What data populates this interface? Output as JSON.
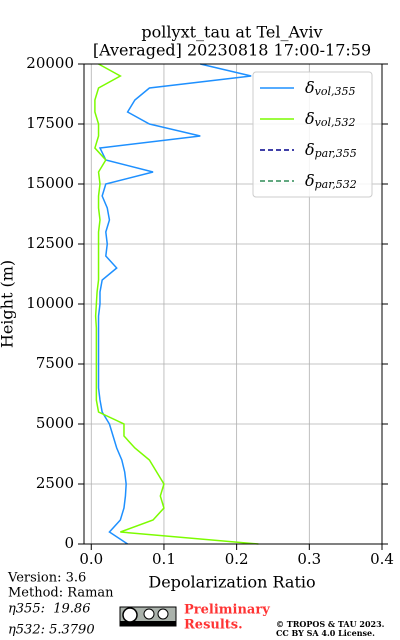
{
  "chart_data": {
    "type": "line",
    "title": "pollyxt_tau at Tel_Aviv",
    "subtitle": "[Averaged] 20230818 17:00-17:59",
    "x_label": "Depolarization Ratio",
    "y_label": "Height (m)",
    "y": [
      0,
      500,
      1000,
      1500,
      2000,
      2500,
      3000,
      3500,
      4000,
      4500,
      5000,
      5500,
      6000,
      6500,
      7000,
      7500,
      8000,
      8500,
      9000,
      9500,
      10000,
      10500,
      11000,
      11500,
      12000,
      12500,
      13000,
      13500,
      14000,
      14500,
      15000,
      15500,
      16000,
      16500,
      17000,
      17500,
      18000,
      18500,
      19000,
      19500,
      20000
    ],
    "series": [
      {
        "name": "δvol,355",
        "color": "#1e90ff",
        "dash": false,
        "values": [
          0.05,
          0.025,
          0.04,
          0.045,
          0.047,
          0.048,
          0.046,
          0.042,
          0.035,
          0.03,
          0.025,
          0.015,
          0.012,
          0.01,
          0.01,
          0.01,
          0.01,
          0.01,
          0.01,
          0.01,
          0.012,
          0.012,
          0.015,
          0.035,
          0.02,
          0.022,
          0.02,
          0.025,
          0.022,
          0.015,
          0.02,
          0.085,
          0.02,
          0.012,
          0.15,
          0.08,
          0.05,
          0.06,
          0.08,
          0.22,
          0.15
        ]
      },
      {
        "name": "δvol,532",
        "color": "#7cfc00",
        "dash": false,
        "values": [
          0.23,
          0.04,
          0.085,
          0.1,
          0.095,
          0.1,
          0.09,
          0.08,
          0.06,
          0.045,
          0.045,
          0.01,
          0.007,
          0.007,
          0.007,
          0.007,
          0.007,
          0.007,
          0.007,
          0.006,
          0.007,
          0.008,
          0.01,
          0.01,
          0.01,
          0.01,
          0.01,
          0.012,
          0.01,
          0.01,
          0.012,
          0.01,
          0.02,
          0.005,
          0.01,
          0.01,
          0.005,
          0.005,
          0.01,
          0.04,
          0.01
        ]
      },
      {
        "name": "δpar,355",
        "color": "#00008b",
        "dash": true,
        "values": [
          null,
          null,
          null,
          null,
          null,
          null,
          null,
          null,
          null,
          null,
          null,
          null,
          null,
          null,
          null,
          null,
          null,
          null,
          null,
          null,
          null,
          null,
          null,
          null,
          null,
          null,
          null,
          null,
          null,
          null,
          null,
          null,
          null,
          null,
          null,
          null,
          null,
          null,
          null,
          null,
          null
        ]
      },
      {
        "name": "δpar,532",
        "color": "#2e8b57",
        "dash": true,
        "values": [
          null,
          null,
          null,
          null,
          null,
          null,
          null,
          null,
          null,
          null,
          null,
          null,
          null,
          null,
          null,
          null,
          null,
          null,
          null,
          null,
          null,
          null,
          null,
          null,
          null,
          null,
          null,
          null,
          null,
          null,
          null,
          null,
          null,
          null,
          null,
          null,
          null,
          null,
          null,
          null,
          null
        ]
      }
    ],
    "xlim": [
      -0.01,
      0.4
    ],
    "xticks": [
      {
        "value": 0,
        "label": "0.0"
      },
      0.1,
      0.2,
      0.3,
      0.4
    ],
    "ylim": [
      0,
      20000
    ],
    "yticks": [
      0,
      2500,
      5000,
      7500,
      10000,
      12500,
      15000,
      17500,
      20000
    ],
    "grid": true,
    "legend": "upper right"
  },
  "footer": {
    "version": "Version: 3.6",
    "method": "Method: Raman",
    "eta355": "η355:  19.86",
    "eta532": "η532: 5.3790",
    "notice": [
      "Preliminary",
      "Results."
    ],
    "copyright": [
      "© TROPOS & TAU 2023.",
      "CC BY SA 4.0 License."
    ]
  }
}
